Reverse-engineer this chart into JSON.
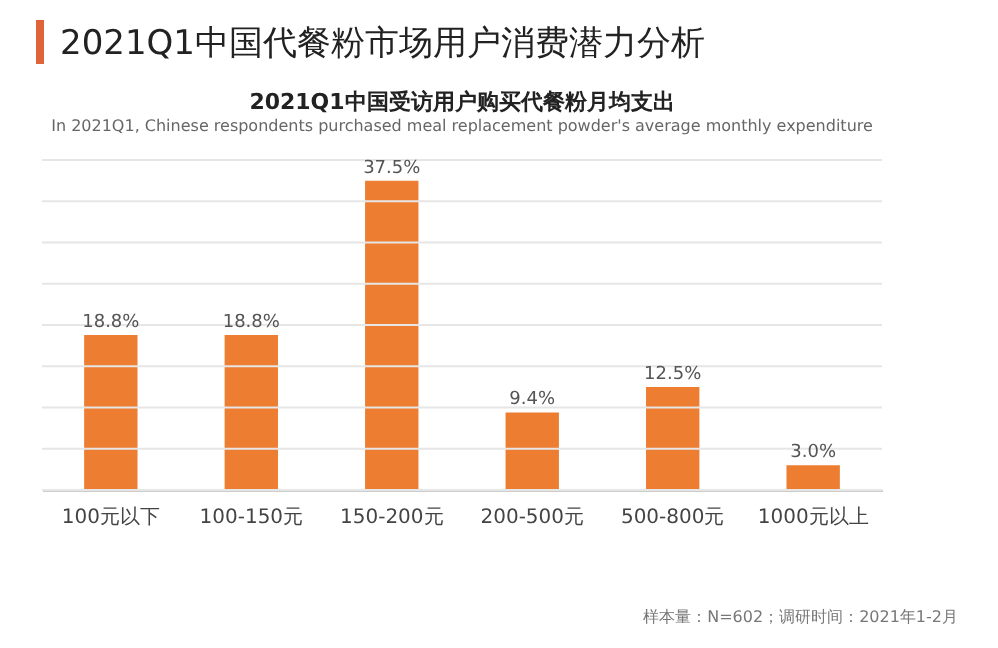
{
  "chart_data": {
    "type": "bar",
    "title": "2021Q1中国代餐粉市场用户消费潜力分析",
    "subtitle": "2021Q1中国受访用户购买代餐粉月均支出",
    "annotations": [
      "In 2021Q1, Chinese respondents purchased meal replacement powder's average monthly expenditure",
      "样本量：N=602；调研时间：2021年1-2月"
    ],
    "categories": [
      "100元以下",
      "100-150元",
      "150-200元",
      "200-500元",
      "500-800元",
      "1000元以上"
    ],
    "values": [
      18.8,
      18.8,
      37.5,
      9.4,
      12.5,
      3.0
    ],
    "value_labels": [
      "18.8%",
      "18.8%",
      "37.5%",
      "9.4%",
      "12.5%",
      "3.0%"
    ],
    "color": "#ed7d31",
    "ylim": [
      0,
      40
    ],
    "yticks": [
      {
        "value": 0,
        "label": null
      },
      {
        "value": 5,
        "label": null
      },
      {
        "value": 10,
        "label": null
      },
      {
        "value": 15,
        "label": null
      },
      {
        "value": 20,
        "label": null
      },
      {
        "value": 25,
        "label": null
      },
      {
        "value": 30,
        "label": null
      },
      {
        "value": 35,
        "label": null
      },
      {
        "value": 40,
        "label": null
      }
    ],
    "grid": "y",
    "tick_labels": "x"
  }
}
